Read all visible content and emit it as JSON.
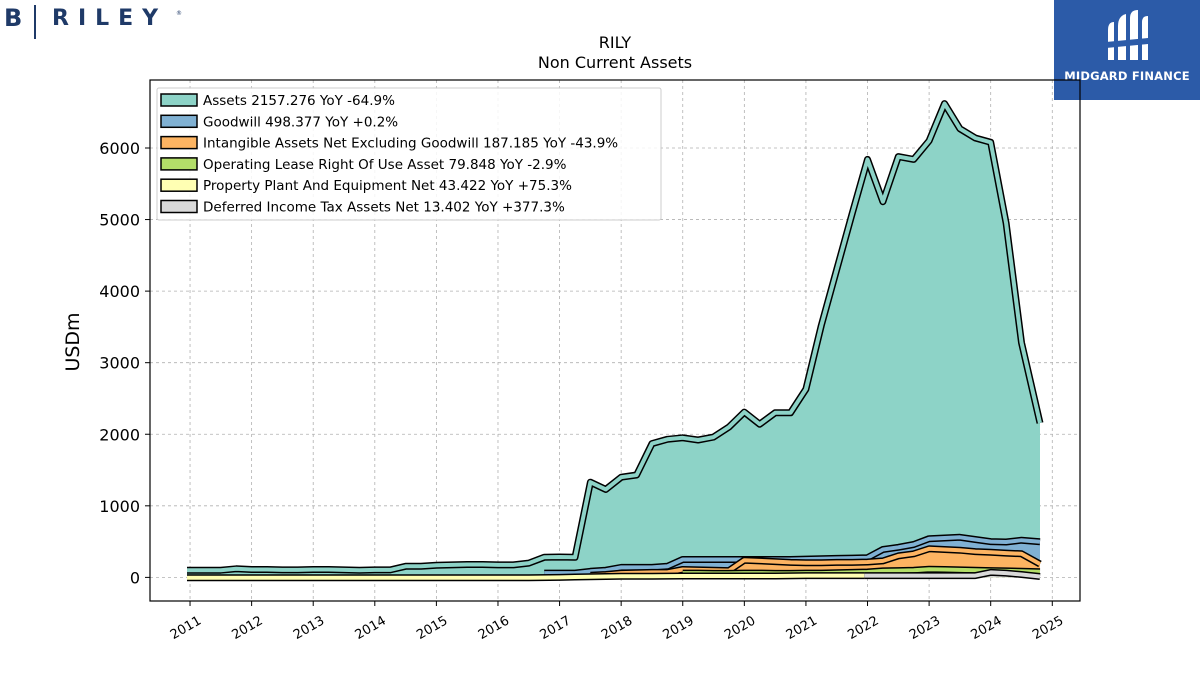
{
  "header": {
    "brand_left": "RILEY",
    "brand_left_letter": "B",
    "brand_left_mark": "®",
    "brand_right": "MIDGARD FINANCE"
  },
  "colors": {
    "assets": "#8dd3c7",
    "goodwill": "#80b1d3",
    "intangibles": "#fdb462",
    "oplease": "#b3de69",
    "ppe": "#ffffb3",
    "deftax": "#d9d9d9",
    "brand_blue": "#1f3a68",
    "badge_blue": "#2c5ba8"
  },
  "chart_data": {
    "type": "area",
    "title": "RILY",
    "subtitle": "Non Current  Assets",
    "ylabel": "USDm",
    "xlabel": "",
    "ylim": [
      -330,
      6950
    ],
    "xlim": [
      2010.35,
      2025.45
    ],
    "grid": true,
    "legend_position": "top-left",
    "yticks": [
      0,
      1000,
      2000,
      3000,
      4000,
      5000,
      6000
    ],
    "xticks": [
      2011,
      2012,
      2013,
      2014,
      2015,
      2016,
      2017,
      2018,
      2019,
      2020,
      2021,
      2022,
      2023,
      2024,
      2025
    ],
    "legend": [
      "Assets  2157.276 YoY -64.9%",
      "Goodwill  498.377 YoY +0.2%",
      "Intangible Assets Net Excluding Goodwill  187.185 YoY -43.9%",
      "Operating Lease Right Of Use Asset  79.848 YoY -2.9%",
      "Property Plant And Equipment Net  43.422 YoY +75.3%",
      "Deferred Income Tax Assets Net  13.402 YoY +377.3%"
    ],
    "series": [
      {
        "name": "Assets",
        "color_key": "assets",
        "points": [
          [
            2010.95,
            100
          ],
          [
            2011.25,
            100
          ],
          [
            2011.5,
            100
          ],
          [
            2011.75,
            120
          ],
          [
            2012.0,
            110
          ],
          [
            2012.25,
            110
          ],
          [
            2012.5,
            105
          ],
          [
            2012.75,
            105
          ],
          [
            2013.0,
            110
          ],
          [
            2013.25,
            110
          ],
          [
            2013.5,
            105
          ],
          [
            2013.75,
            100
          ],
          [
            2014.0,
            105
          ],
          [
            2014.25,
            105
          ],
          [
            2014.5,
            155
          ],
          [
            2014.75,
            155
          ],
          [
            2015.0,
            170
          ],
          [
            2015.25,
            175
          ],
          [
            2015.5,
            180
          ],
          [
            2015.75,
            180
          ],
          [
            2016.0,
            175
          ],
          [
            2016.25,
            175
          ],
          [
            2016.5,
            200
          ],
          [
            2016.75,
            280
          ],
          [
            2017.0,
            285
          ],
          [
            2017.25,
            280
          ],
          [
            2017.5,
            1330
          ],
          [
            2017.75,
            1230
          ],
          [
            2018.0,
            1400
          ],
          [
            2018.25,
            1430
          ],
          [
            2018.5,
            1870
          ],
          [
            2018.75,
            1930
          ],
          [
            2019.0,
            1950
          ],
          [
            2019.25,
            1920
          ],
          [
            2019.5,
            1960
          ],
          [
            2019.75,
            2100
          ],
          [
            2020.0,
            2310
          ],
          [
            2020.25,
            2140
          ],
          [
            2020.5,
            2300
          ],
          [
            2020.75,
            2300
          ],
          [
            2021.0,
            2630
          ],
          [
            2021.25,
            3520
          ],
          [
            2021.5,
            4300
          ],
          [
            2021.75,
            5080
          ],
          [
            2022.0,
            5840
          ],
          [
            2022.25,
            5250
          ],
          [
            2022.5,
            5880
          ],
          [
            2022.75,
            5840
          ],
          [
            2023.0,
            6100
          ],
          [
            2023.25,
            6620
          ],
          [
            2023.5,
            6270
          ],
          [
            2023.75,
            6140
          ],
          [
            2024.0,
            6080
          ],
          [
            2024.25,
            4950
          ],
          [
            2024.5,
            3280
          ],
          [
            2024.8,
            2157
          ]
        ]
      },
      {
        "name": "Goodwill",
        "color_key": "goodwill",
        "points": [
          [
            2016.75,
            60
          ],
          [
            2017.0,
            60
          ],
          [
            2017.25,
            60
          ],
          [
            2017.5,
            85
          ],
          [
            2017.75,
            100
          ],
          [
            2018.0,
            140
          ],
          [
            2018.25,
            140
          ],
          [
            2018.5,
            140
          ],
          [
            2018.75,
            155
          ],
          [
            2019.0,
            250
          ],
          [
            2019.25,
            250
          ],
          [
            2019.5,
            250
          ],
          [
            2019.75,
            250
          ],
          [
            2020.0,
            250
          ],
          [
            2020.25,
            250
          ],
          [
            2020.5,
            250
          ],
          [
            2020.75,
            250
          ],
          [
            2021.0,
            255
          ],
          [
            2021.25,
            260
          ],
          [
            2021.5,
            265
          ],
          [
            2021.75,
            270
          ],
          [
            2022.0,
            275
          ],
          [
            2022.25,
            390
          ],
          [
            2022.5,
            420
          ],
          [
            2022.75,
            460
          ],
          [
            2023.0,
            540
          ],
          [
            2023.25,
            550
          ],
          [
            2023.5,
            560
          ],
          [
            2023.75,
            530
          ],
          [
            2024.0,
            500
          ],
          [
            2024.25,
            495
          ],
          [
            2024.5,
            520
          ],
          [
            2024.8,
            498
          ]
        ]
      },
      {
        "name": "Intangible Assets Net Excluding Goodwill",
        "color_key": "intangibles",
        "points": [
          [
            2017.5,
            30
          ],
          [
            2017.75,
            40
          ],
          [
            2018.0,
            60
          ],
          [
            2018.25,
            65
          ],
          [
            2018.5,
            70
          ],
          [
            2018.75,
            70
          ],
          [
            2019.0,
            110
          ],
          [
            2019.25,
            105
          ],
          [
            2019.5,
            100
          ],
          [
            2019.75,
            95
          ],
          [
            2020.0,
            240
          ],
          [
            2020.25,
            230
          ],
          [
            2020.5,
            220
          ],
          [
            2020.75,
            210
          ],
          [
            2021.0,
            205
          ],
          [
            2021.25,
            205
          ],
          [
            2021.5,
            210
          ],
          [
            2021.75,
            210
          ],
          [
            2022.0,
            215
          ],
          [
            2022.25,
            230
          ],
          [
            2022.5,
            300
          ],
          [
            2022.75,
            330
          ],
          [
            2023.0,
            400
          ],
          [
            2023.25,
            390
          ],
          [
            2023.5,
            380
          ],
          [
            2023.75,
            360
          ],
          [
            2024.0,
            350
          ],
          [
            2024.25,
            340
          ],
          [
            2024.5,
            330
          ],
          [
            2024.8,
            187
          ]
        ]
      },
      {
        "name": "Operating Lease Right Of Use Asset",
        "color_key": "oplease",
        "points": [
          [
            2019.0,
            60
          ],
          [
            2019.25,
            60
          ],
          [
            2019.5,
            55
          ],
          [
            2019.75,
            55
          ],
          [
            2020.0,
            60
          ],
          [
            2020.25,
            60
          ],
          [
            2020.5,
            55
          ],
          [
            2020.75,
            55
          ],
          [
            2021.0,
            60
          ],
          [
            2021.25,
            60
          ],
          [
            2021.5,
            65
          ],
          [
            2021.75,
            70
          ],
          [
            2022.0,
            75
          ],
          [
            2022.25,
            90
          ],
          [
            2022.5,
            95
          ],
          [
            2022.75,
            100
          ],
          [
            2023.0,
            115
          ],
          [
            2023.25,
            110
          ],
          [
            2023.5,
            105
          ],
          [
            2023.75,
            100
          ],
          [
            2024.0,
            95
          ],
          [
            2024.25,
            90
          ],
          [
            2024.5,
            85
          ],
          [
            2024.8,
            80
          ]
        ]
      },
      {
        "name": "Property Plant And Equipment Net",
        "color_key": "ppe",
        "points": [
          [
            2010.95,
            -5
          ],
          [
            2011.5,
            -5
          ],
          [
            2012.0,
            -5
          ],
          [
            2012.5,
            -5
          ],
          [
            2013.0,
            -5
          ],
          [
            2013.5,
            -5
          ],
          [
            2014.0,
            -5
          ],
          [
            2014.5,
            -5
          ],
          [
            2015.0,
            -5
          ],
          [
            2015.5,
            -5
          ],
          [
            2016.0,
            -5
          ],
          [
            2016.5,
            -5
          ],
          [
            2017.0,
            0
          ],
          [
            2017.25,
            5
          ],
          [
            2017.5,
            10
          ],
          [
            2018.0,
            15
          ],
          [
            2018.5,
            15
          ],
          [
            2019.0,
            20
          ],
          [
            2019.5,
            20
          ],
          [
            2020.0,
            20
          ],
          [
            2020.5,
            20
          ],
          [
            2021.0,
            25
          ],
          [
            2021.5,
            25
          ],
          [
            2021.95,
            25
          ]
        ]
      },
      {
        "name": "Deferred Income Tax Assets Net",
        "color_key": "deftax",
        "points": [
          [
            2021.95,
            25
          ],
          [
            2022.25,
            25
          ],
          [
            2022.5,
            25
          ],
          [
            2022.75,
            25
          ],
          [
            2023.0,
            25
          ],
          [
            2023.25,
            25
          ],
          [
            2023.5,
            25
          ],
          [
            2023.75,
            25
          ],
          [
            2024.0,
            70
          ],
          [
            2024.25,
            60
          ],
          [
            2024.5,
            40
          ],
          [
            2024.8,
            13
          ]
        ]
      }
    ]
  }
}
